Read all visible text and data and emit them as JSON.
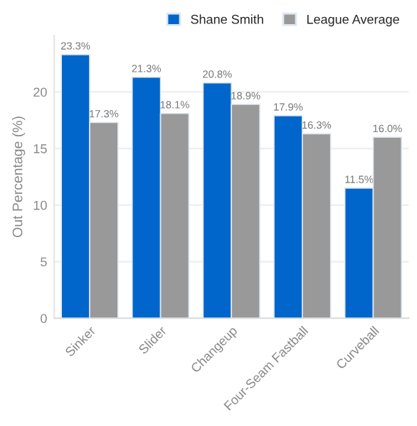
{
  "chart_data": {
    "type": "bar",
    "ylabel": "Out Percentage (%)",
    "categories": [
      "Sinker",
      "Slider",
      "Changeup",
      "Four-Seam Fastball",
      "Curveball"
    ],
    "series": [
      {
        "name": "Shane Smith",
        "color": "#0066cc",
        "values": [
          23.3,
          21.3,
          20.8,
          17.9,
          11.5
        ],
        "value_labels": [
          "23.3%",
          "21.3%",
          "20.8%",
          "17.9%",
          "11.5%"
        ]
      },
      {
        "name": "League Average",
        "color": "#999999",
        "values": [
          17.3,
          18.1,
          18.9,
          16.3,
          16.0
        ],
        "value_labels": [
          "17.3%",
          "18.1%",
          "18.9%",
          "16.3%",
          "16.0%"
        ]
      }
    ],
    "ylim": [
      0,
      25
    ],
    "yticks": [
      0,
      5,
      10,
      15,
      20
    ],
    "grid": "y",
    "legend": "top right"
  }
}
